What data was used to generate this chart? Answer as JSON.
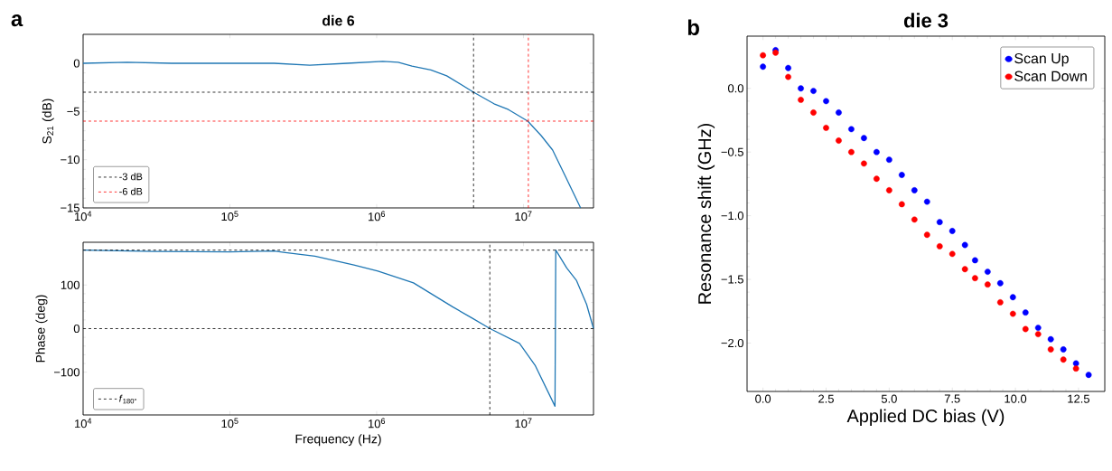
{
  "chart_data": [
    {
      "type": "line",
      "title": "die 6",
      "ylabel": "S$_{21}$ (dB)",
      "log": "x",
      "xlim": [
        10000,
        30000000
      ],
      "ylim": [
        -15,
        3
      ],
      "xticks": [
        {
          "value": 10000,
          "label": "10$^{4}$"
        },
        {
          "value": 100000,
          "label": "10$^{5}$"
        },
        {
          "value": 1000000,
          "label": "10$^{6}$"
        },
        {
          "value": 10000000,
          "label": "10$^{7}$"
        }
      ],
      "yticks": [
        {
          "value": -15,
          "label": "−15"
        },
        {
          "value": -10,
          "label": "−10"
        },
        {
          "value": -5,
          "label": "−5"
        },
        0
      ],
      "legend": "bottom left",
      "annotations": [
        "a"
      ],
      "series": [
        {
          "color": "#1f77b4",
          "x": [
            10000,
            20000,
            40000,
            100000,
            200000,
            350000,
            630000,
            1100000,
            1400000,
            1740000,
            2340000,
            3000000,
            4570000,
            6300000,
            7900000,
            10700000,
            13200000,
            15800000,
            19000000,
            24500000
          ],
          "values": [
            0.0,
            0.1,
            0.0,
            0.0,
            0.0,
            -0.2,
            0.0,
            0.2,
            0.1,
            -0.3,
            -0.7,
            -1.3,
            -3.0,
            -4.2,
            -4.8,
            -6.0,
            -7.5,
            -9.0,
            -11.5,
            -15.0
          ]
        }
      ],
      "ref_lines": [
        {
          "axis": "y",
          "value": -3,
          "label": "-3 dB",
          "color": "#000000",
          "line_style": "dashed"
        },
        {
          "axis": "y",
          "value": -6,
          "label": "-6 dB",
          "color": "#ff0000",
          "line_style": "dashed"
        },
        {
          "axis": "x",
          "value": 4570000,
          "color": "#000000",
          "line_style": "dashed"
        },
        {
          "axis": "x",
          "value": 10800000,
          "color": "#ff0000",
          "line_style": "dashed"
        }
      ]
    },
    {
      "type": "line",
      "xlabel": "Frequency (Hz)",
      "ylabel": "Phase (deg)",
      "log": "x",
      "xlim": [
        10000,
        30000000
      ],
      "ylim": [
        -198,
        198
      ],
      "xticks": [
        {
          "value": 10000,
          "label": "10$^{4}$"
        },
        {
          "value": 100000,
          "label": "10$^{5}$"
        },
        {
          "value": 1000000,
          "label": "10$^{6}$"
        },
        {
          "value": 10000000,
          "label": "10$^{7}$"
        }
      ],
      "yticks": [
        {
          "value": -100,
          "label": "−100"
        },
        0,
        100
      ],
      "legend": "bottom left",
      "series": [
        {
          "color": "#1f77b4",
          "x": [
            10000,
            30000,
            100000,
            200000,
            232000,
            380000,
            700000,
            1020000,
            1780000,
            3290000,
            4470000,
            5920000,
            9400000,
            12000000,
            16400000,
            16600000,
            19700000,
            23000000,
            26900000,
            30000000
          ],
          "values": [
            180,
            177,
            176,
            178,
            175,
            166,
            146,
            132,
            105,
            50,
            24,
            0,
            -34,
            -84,
            -178,
            180,
            139,
            110,
            56,
            0
          ]
        }
      ],
      "ref_lines": [
        {
          "axis": "y",
          "value": 180,
          "color": "#000000",
          "line_style": "dashed"
        },
        {
          "axis": "y",
          "value": 0,
          "label": "*f*$_{180°}$",
          "color": "#000000",
          "line_style": "dashed"
        },
        {
          "axis": "x",
          "value": 5900000,
          "color": "#000000",
          "line_style": "dashed"
        }
      ]
    },
    {
      "type": "scatter",
      "title": "die 3",
      "xlabel": "Applied DC bias (V)",
      "ylabel": "Resonance shift (GHz)",
      "xlim": [
        -0.63,
        13.54
      ],
      "ylim": [
        -2.38,
        0.41
      ],
      "xticks": [
        {
          "value": 0,
          "label": "0.0"
        },
        {
          "value": 2.5,
          "label": "2.5"
        },
        {
          "value": 5,
          "label": "5.0"
        },
        {
          "value": 7.5,
          "label": "7.5"
        },
        {
          "value": 10,
          "label": "10.0"
        },
        {
          "value": 12.5,
          "label": "12.5"
        }
      ],
      "yticks": [
        {
          "value": -2,
          "label": "−2.0"
        },
        {
          "value": -1.5,
          "label": "−1.5"
        },
        {
          "value": -1,
          "label": "−1.0"
        },
        {
          "value": -0.5,
          "label": "−0.5"
        },
        {
          "value": 0,
          "label": "0.0"
        }
      ],
      "legend": "top right",
      "marker": "circle",
      "annotations": [
        "b"
      ],
      "series": [
        {
          "name": "Scan Up",
          "color": "#0000ff",
          "x": [
            0,
            0.5,
            1.0,
            1.5,
            2.0,
            2.5,
            3.0,
            3.5,
            4.0,
            4.5,
            5.0,
            5.5,
            6.0,
            6.5,
            7.0,
            7.5,
            8.0,
            8.4,
            8.9,
            9.4,
            9.9,
            10.4,
            10.9,
            11.4,
            11.9,
            12.4,
            12.9
          ],
          "values": [
            0.17,
            0.3,
            0.16,
            0.0,
            -0.02,
            -0.1,
            -0.19,
            -0.32,
            -0.39,
            -0.5,
            -0.56,
            -0.68,
            -0.8,
            -0.89,
            -1.05,
            -1.12,
            -1.23,
            -1.35,
            -1.44,
            -1.53,
            -1.64,
            -1.76,
            -1.88,
            -1.97,
            -2.05,
            -2.16,
            -2.25
          ]
        },
        {
          "name": "Scan Down",
          "color": "#ff0000",
          "x": [
            0,
            0.5,
            1.0,
            1.5,
            2.0,
            2.5,
            3.0,
            3.5,
            4.0,
            4.5,
            5.0,
            5.5,
            6.0,
            6.5,
            7.0,
            7.5,
            8.0,
            8.4,
            8.9,
            9.4,
            9.9,
            10.4,
            10.9,
            11.4,
            11.9,
            12.4
          ],
          "values": [
            0.26,
            0.28,
            0.09,
            -0.09,
            -0.19,
            -0.31,
            -0.41,
            -0.5,
            -0.59,
            -0.71,
            -0.8,
            -0.91,
            -1.03,
            -1.15,
            -1.24,
            -1.3,
            -1.42,
            -1.49,
            -1.54,
            -1.68,
            -1.77,
            -1.89,
            -1.93,
            -2.05,
            -2.13,
            -2.2
          ]
        }
      ]
    }
  ]
}
